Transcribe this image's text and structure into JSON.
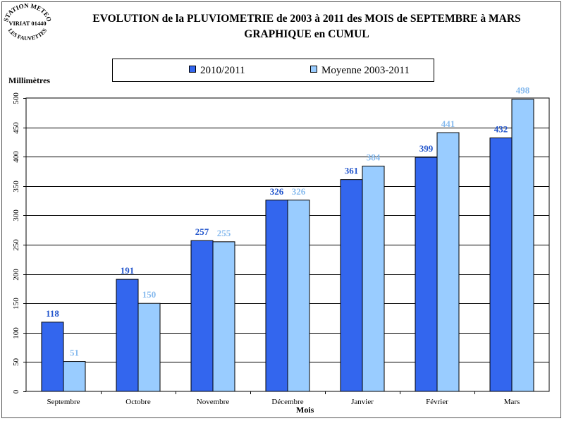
{
  "stamp": {
    "top_text": "STATION METEO",
    "middle_text": "VIRIAT 01440",
    "bottom_text": "LES FAUVETTES"
  },
  "chart_data": {
    "type": "bar",
    "title": "EVOLUTION de la PLUVIOMETRIE de 2003 à 2011 des MOIS de SEPTEMBRE à MARS",
    "subtitle": "GRAPHIQUE en CUMUL",
    "ylabel": "Millimètres",
    "xlabel": "Mois",
    "ylim": [
      0,
      500
    ],
    "yticks": [
      0,
      50,
      100,
      150,
      200,
      250,
      300,
      350,
      400,
      450,
      500
    ],
    "grid": true,
    "legend_position": "top",
    "categories": [
      "Septembre",
      "Octobre",
      "Novembre",
      "Décembre",
      "Janvier",
      "Février",
      "Mars"
    ],
    "series": [
      {
        "name": "2010/2011",
        "color": "#3366ee",
        "label_color": "#2255cc",
        "values": [
          118,
          191,
          257,
          326,
          361,
          399,
          432
        ]
      },
      {
        "name": "Moyenne 2003-2011",
        "color": "#99ccff",
        "label_color": "#88bbee",
        "values": [
          51,
          150,
          255,
          326,
          384,
          441,
          498
        ]
      }
    ]
  }
}
